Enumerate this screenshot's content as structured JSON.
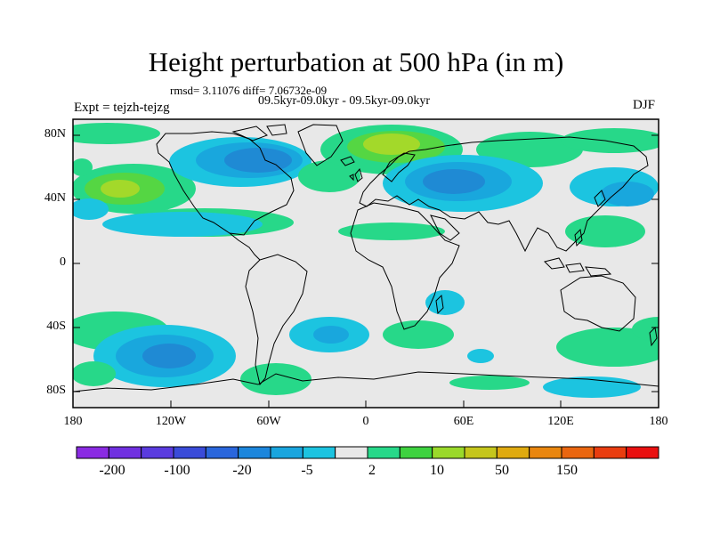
{
  "title": "Height perturbation at 500 hPa (in m)",
  "stats": "rmsd= 3.11076 diff= 7.06732e-09",
  "subtitle": "09.5kyr-09.0kyr - 09.5kyr-09.0kyr",
  "experiment": "Expt = tejzh-tejzg",
  "season": "DJF",
  "lat_labels": [
    "80N",
    "40N",
    "0",
    "40S",
    "80S"
  ],
  "lon_labels": [
    "180",
    "120W",
    "60W",
    "0",
    "60E",
    "120E",
    "180"
  ],
  "colorbar": {
    "colors": [
      "#8a2be2",
      "#7030e0",
      "#5a3bdf",
      "#3a4bd9",
      "#2a66dc",
      "#1c86dc",
      "#19a5de",
      "#1cc3e0",
      "#e8e8e8",
      "#27d889",
      "#3ed23f",
      "#9ad92b",
      "#c5c61c",
      "#dfaa10",
      "#e9860f",
      "#ea6610",
      "#e93d10",
      "#e91010"
    ],
    "labels": [
      "-200",
      "-100",
      "-20",
      "-5",
      "2",
      "10",
      "50",
      "150"
    ]
  },
  "anomaly_levels": {
    "neg3": "#1f8ad4",
    "neg2": "#19a7dd",
    "neg1": "#1cc4e0",
    "pos1": "#27d889",
    "pos2": "#55d643",
    "pos3": "#a3d92a"
  }
}
